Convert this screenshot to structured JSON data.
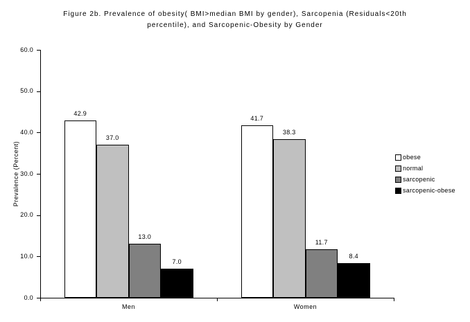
{
  "title_line1": "Figure 2b. Prevalence of obesity( BMI>median BMI by gender), Sarcopenia (Residuals<20th",
  "title_line2": "percentile), and Sarcopenic-Obesity by Gender",
  "chart_data": {
    "type": "bar",
    "title": "Figure 2b. Prevalence of obesity( BMI>median BMI by gender), Sarcopenia (Residuals<20th percentile), and Sarcopenic-Obesity by Gender",
    "categories": [
      "Men",
      "Women"
    ],
    "series": [
      {
        "name": "obese",
        "color": "#ffffff",
        "values": [
          42.9,
          41.7
        ]
      },
      {
        "name": "normal",
        "color": "#c0c0c0",
        "values": [
          37.0,
          38.3
        ]
      },
      {
        "name": "sarcopenic",
        "color": "#808080",
        "values": [
          13.0,
          11.7
        ]
      },
      {
        "name": "sarcopenic-obese",
        "color": "#000000",
        "values": [
          7.0,
          8.4
        ]
      }
    ],
    "ylabel": "Prevalence (Percent)",
    "xlabel": "",
    "ylim": [
      0,
      60
    ],
    "ytick_labels": [
      "0.0",
      "10.0",
      "20.0",
      "30.0",
      "40.0",
      "50.0",
      "60.0"
    ],
    "grid": false,
    "legend": {
      "position": "right",
      "entries": [
        "obese",
        "normal",
        "sarcopenic",
        "sarcopenic-obese"
      ]
    }
  }
}
